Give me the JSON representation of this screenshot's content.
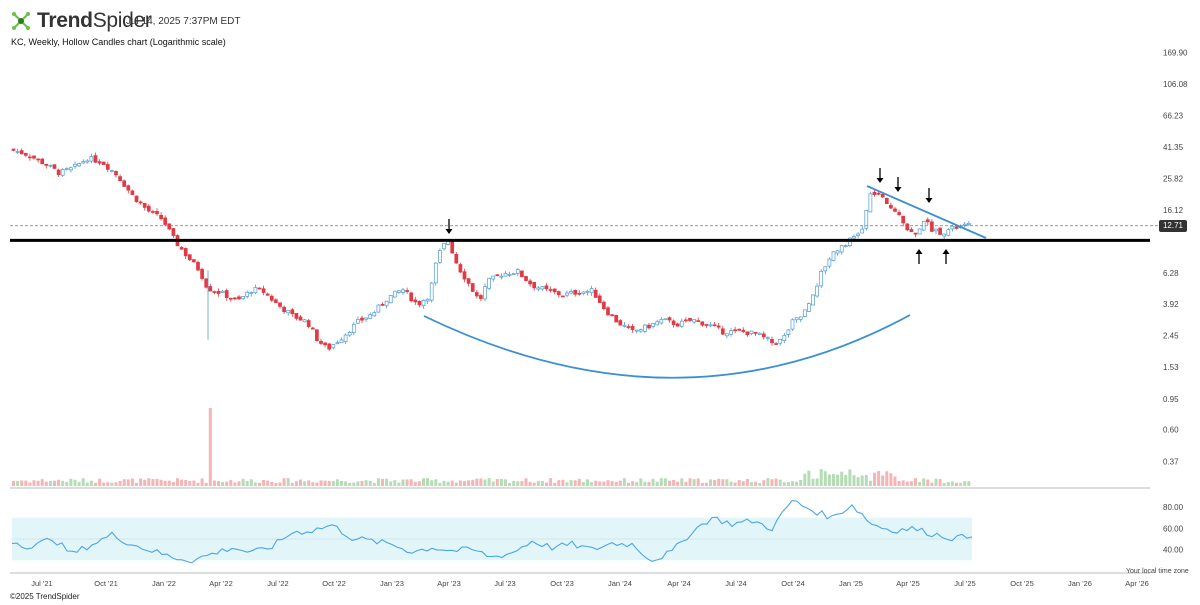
{
  "app": {
    "brand_bold": "Trend",
    "brand_regular": "Spider",
    "logo_icon": "trendspider-logo-icon"
  },
  "header": {
    "timestamp": "Jul 14, 2025 7:37PM EDT",
    "chart_description": "KC, Weekly, Hollow Candles chart (Logarithmic scale)"
  },
  "footer": {
    "credit": "©2025 TrendSpider",
    "local_time_note": "Your local time zone"
  },
  "price_marker": {
    "value": "12.71"
  },
  "colors": {
    "up": "#4c9bd4",
    "down": "#e03a45",
    "trendline": "#3b8fd3",
    "support": "#000000",
    "vol_up": "#b6dcb5",
    "vol_down": "#f3b6b4",
    "rsi_line": "#4aa6e8",
    "rsi_band": "#e2f5f8"
  },
  "chart_data": {
    "type": "line",
    "title": "KC, Weekly, Hollow Candles chart (Logarithmic scale)",
    "x_axis_labels": [
      "Jul '21",
      "Oct '21",
      "Jan '22",
      "Apr '22",
      "Jul '22",
      "Oct '22",
      "Jan '23",
      "Apr '23",
      "Jul '23",
      "Oct '23",
      "Jan '24",
      "Apr '24",
      "Jul '24",
      "Oct '24",
      "Jan '25",
      "Apr '25",
      "Jul '25",
      "Oct '25",
      "Jan '26",
      "Apr '26"
    ],
    "price_axis": {
      "scale": "log",
      "ticks": [
        "169.90",
        "106.08",
        "66.23",
        "41.35",
        "25.82",
        "16.12",
        "12.71",
        "6.28",
        "3.92",
        "2.45",
        "1.53",
        "0.95",
        "0.60",
        "0.37"
      ],
      "range": [
        0.3,
        180
      ]
    },
    "price_series": {
      "name": "KC weekly close (approx.)",
      "x": [
        "Jul '21",
        "Oct '21",
        "Jan '22",
        "Apr '22",
        "Jul '22",
        "Oct '22",
        "Jan '23",
        "Apr '23",
        "Jul '23",
        "Oct '23",
        "Jan '24",
        "Apr '24",
        "Jul '24",
        "Oct '24",
        "Jan '25",
        "Apr '25",
        "Jul '25"
      ],
      "values": [
        34,
        30,
        11.5,
        5,
        4.5,
        2.1,
        3.6,
        9.8,
        6.2,
        4.4,
        2.5,
        2.9,
        2.5,
        4,
        11,
        13,
        12.71
      ]
    },
    "annotations": {
      "support_level": 10.2,
      "rounded_bottom": "Mar '23 → May '25",
      "descending_trendline": "Feb '25 → Jul '25",
      "down_arrows": [
        "Apr '23",
        "Feb '25",
        "Mar '25",
        "May '25"
      ],
      "up_arrows": [
        "Apr '25",
        "Jun '25"
      ]
    },
    "rsi": {
      "ticks": [
        "80.00",
        "60.00",
        "40.00"
      ],
      "band": [
        30,
        70
      ],
      "values": [
        48,
        42,
        51,
        36,
        45,
        54,
        45,
        39,
        33,
        30,
        36,
        42,
        37,
        43,
        56,
        58,
        63,
        51,
        48,
        45,
        38,
        42,
        39,
        40,
        33,
        37,
        48,
        42,
        45,
        40,
        46,
        45,
        30,
        38,
        57,
        70,
        64,
        67,
        60,
        86,
        77,
        70,
        82,
        64,
        58,
        60,
        55,
        51,
        52
      ]
    }
  }
}
